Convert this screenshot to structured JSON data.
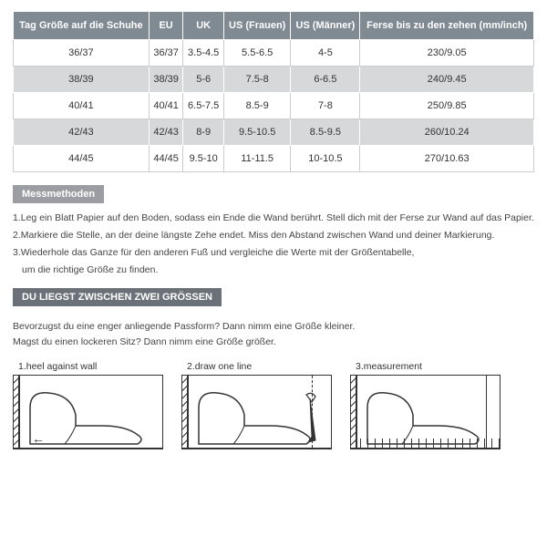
{
  "table": {
    "headers": [
      "Tag Größe auf die Schuhe",
      "EU",
      "UK",
      "US (Frauen)",
      "US (Männer)",
      "Ferse bis zu den zehen (mm/inch)"
    ],
    "rows": [
      [
        "36/37",
        "36/37",
        "3.5-4.5",
        "5.5-6.5",
        "4-5",
        "230/9.05"
      ],
      [
        "38/39",
        "38/39",
        "5-6",
        "7.5-8",
        "6-6.5",
        "240/9.45"
      ],
      [
        "40/41",
        "40/41",
        "6.5-7.5",
        "8.5-9",
        "7-8",
        "250/9.85"
      ],
      [
        "42/43",
        "42/43",
        "8-9",
        "9.5-10.5",
        "8.5-9.5",
        "260/10.24"
      ],
      [
        "44/45",
        "44/45",
        "9.5-10",
        "11-11.5",
        "10-10.5",
        "270/10.63"
      ]
    ]
  },
  "section1": {
    "heading": "Messmethoden",
    "lines": [
      "1.Leg ein Blatt Papier auf den Boden, sodass ein Ende die Wand berührt. Stell dich mit der Ferse zur Wand auf das Papier.",
      "2.Markiere die Stelle, an der deine längste Zehe endet. Miss den Abstand zwischen Wand und deiner Markierung.",
      "3.Wiederhole das Ganze für den anderen Fuß und vergleiche die Werte mit der Größentabelle,",
      "um die richtige Größe zu finden."
    ]
  },
  "section2": {
    "heading": "DU LIEGST ZWISCHEN ZWEI GRÖSSEN",
    "lines": [
      "Bevorzugst du eine enger anliegende Passform? Dann nimm eine Größe kleiner.",
      "Magst du einen lockeren Sitz? Dann nimm eine Größe größer."
    ]
  },
  "diagrams": {
    "d1": "1.heel against wall",
    "d2": "2.draw one line",
    "d3": "3.measurement"
  }
}
